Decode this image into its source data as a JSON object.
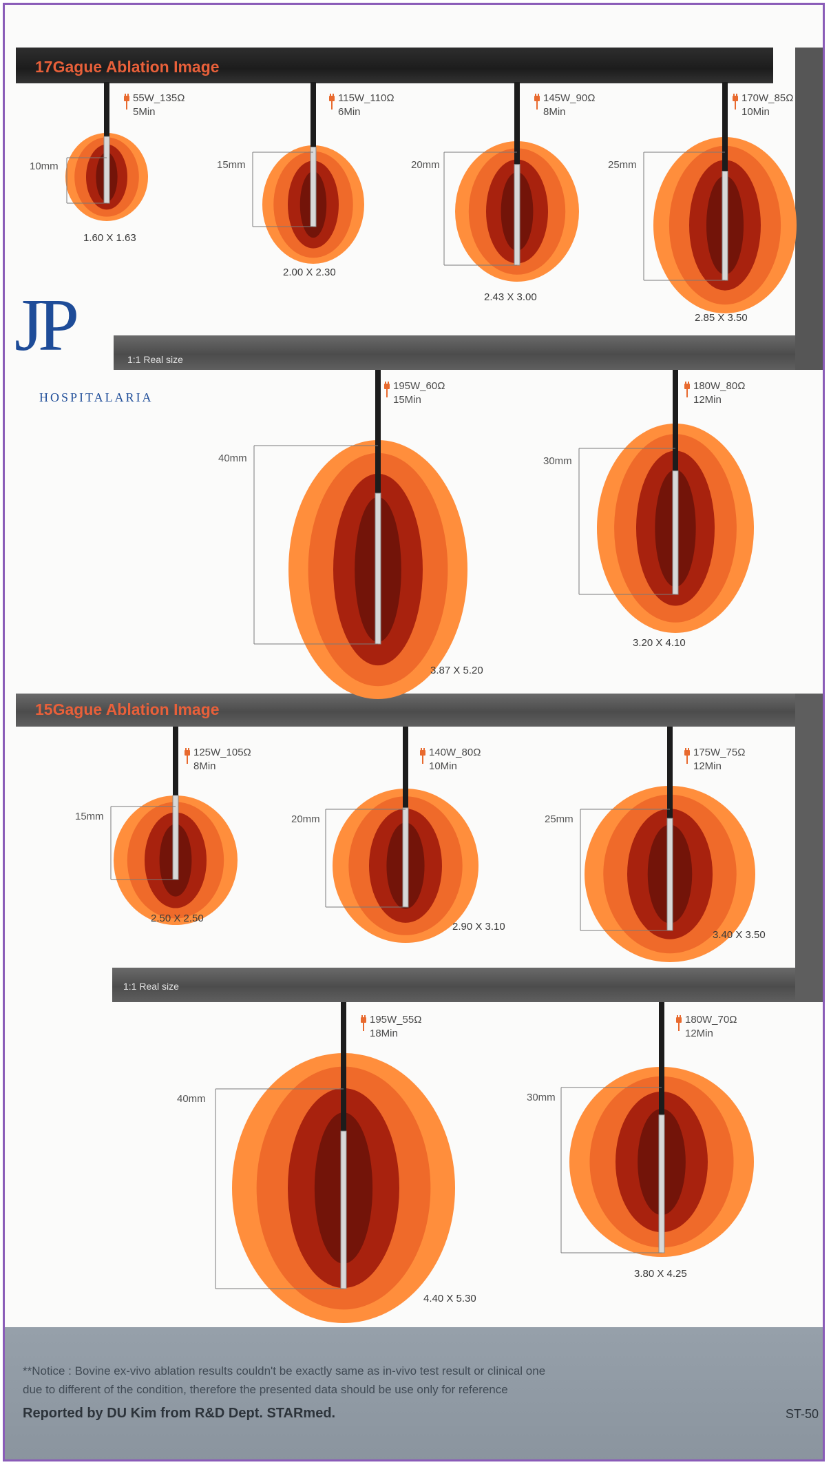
{
  "brand": {
    "logo_initials": "JP",
    "logo_name": "HOSPITALARIA"
  },
  "colors": {
    "zone_outer": "#ff8e3c",
    "zone_mid": "#e25a24",
    "zone_inner": "#a8220e",
    "zone_core": "#6a1208",
    "band_gray": "#5a5a5a",
    "band_dark": "#222222",
    "title_orange": "#e8603a",
    "frame": "#8a5cb8",
    "logo_blue": "#1e4c98"
  },
  "sections": [
    {
      "title": "17Gague Ablation Image",
      "real_size_label": "1:1 Real size",
      "items": [
        {
          "power": "55W_135Ω",
          "time": "5Min",
          "depth": "10mm",
          "size": "1.60 X 1.63"
        },
        {
          "power": "115W_110Ω",
          "time": "6Min",
          "depth": "15mm",
          "size": "2.00 X 2.30"
        },
        {
          "power": "145W_90Ω",
          "time": "8Min",
          "depth": "20mm",
          "size": "2.43 X 3.00"
        },
        {
          "power": "170W_85Ω",
          "time": "10Min",
          "depth": "25mm",
          "size": "2.85 X 3.50"
        },
        {
          "power": "195W_60Ω",
          "time": "15Min",
          "depth": "40mm",
          "size": "3.87 X 5.20"
        },
        {
          "power": "180W_80Ω",
          "time": "12Min",
          "depth": "30mm",
          "size": "3.20 X 4.10"
        }
      ]
    },
    {
      "title": "15Gague Ablation Image",
      "real_size_label": "1:1 Real size",
      "items": [
        {
          "power": "125W_105Ω",
          "time": "8Min",
          "depth": "15mm",
          "size": "2.50 X 2.50"
        },
        {
          "power": "140W_80Ω",
          "time": "10Min",
          "depth": "20mm",
          "size": "2.90 X 3.10"
        },
        {
          "power": "175W_75Ω",
          "time": "12Min",
          "depth": "25mm",
          "size": "3.40 X 3.50"
        },
        {
          "power": "195W_55Ω",
          "time": "18Min",
          "depth": "40mm",
          "size": "4.40 X 5.30"
        },
        {
          "power": "180W_70Ω",
          "time": "12Min",
          "depth": "30mm",
          "size": "3.80 X 4.25"
        }
      ]
    }
  ],
  "footer": {
    "notice_line1": "**Notice : Bovine ex-vivo ablation results couldn't be exactly same as in-vivo test result or clinical one",
    "notice_line2": "due to different of the condition, therefore the presented data should be use only for reference",
    "reported_by": "Reported by DU Kim from R&D Dept. STARmed.",
    "doc_code": "ST-50"
  }
}
